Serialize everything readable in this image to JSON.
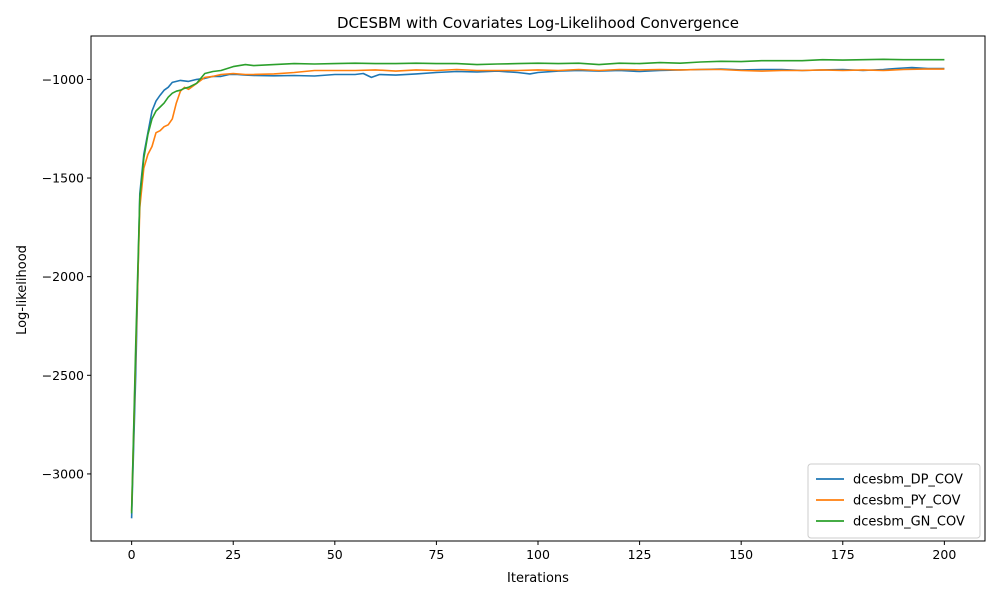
{
  "chart_data": {
    "type": "line",
    "title": "DCESBM with Covariates Log-Likelihood Convergence",
    "xlabel": "Iterations",
    "ylabel": "Log-likelihood",
    "xlim": [
      -10,
      210
    ],
    "ylim": [
      -3340,
      -780
    ],
    "xticks": [
      0,
      25,
      50,
      75,
      100,
      125,
      150,
      175,
      200
    ],
    "yticks": [
      -3000,
      -2500,
      -2000,
      -1500,
      -1000
    ],
    "xtick_labels": [
      "0",
      "25",
      "50",
      "75",
      "100",
      "125",
      "150",
      "175",
      "200"
    ],
    "ytick_labels": [
      "−3000",
      "−2500",
      "−2000",
      "−1500",
      "−1000"
    ],
    "grid": false,
    "legend_position": "lower-right",
    "series": [
      {
        "name": "dcesbm_DP_COV",
        "color": "#1f77b4",
        "points": [
          [
            0,
            -3225
          ],
          [
            1,
            -2500
          ],
          [
            2,
            -1580
          ],
          [
            3,
            -1380
          ],
          [
            4,
            -1270
          ],
          [
            5,
            -1160
          ],
          [
            6,
            -1110
          ],
          [
            7,
            -1080
          ],
          [
            8,
            -1055
          ],
          [
            9,
            -1040
          ],
          [
            10,
            -1015
          ],
          [
            12,
            -1005
          ],
          [
            14,
            -1010
          ],
          [
            16,
            -1000
          ],
          [
            18,
            -995
          ],
          [
            20,
            -985
          ],
          [
            22,
            -985
          ],
          [
            24,
            -975
          ],
          [
            26,
            -975
          ],
          [
            28,
            -978
          ],
          [
            30,
            -980
          ],
          [
            35,
            -982
          ],
          [
            40,
            -980
          ],
          [
            45,
            -983
          ],
          [
            50,
            -975
          ],
          [
            55,
            -975
          ],
          [
            57,
            -970
          ],
          [
            59,
            -990
          ],
          [
            61,
            -975
          ],
          [
            65,
            -978
          ],
          [
            70,
            -972
          ],
          [
            75,
            -965
          ],
          [
            80,
            -960
          ],
          [
            85,
            -962
          ],
          [
            90,
            -958
          ],
          [
            95,
            -965
          ],
          [
            98,
            -972
          ],
          [
            100,
            -965
          ],
          [
            105,
            -958
          ],
          [
            110,
            -955
          ],
          [
            115,
            -958
          ],
          [
            120,
            -955
          ],
          [
            125,
            -960
          ],
          [
            130,
            -955
          ],
          [
            135,
            -952
          ],
          [
            140,
            -950
          ],
          [
            145,
            -948
          ],
          [
            150,
            -952
          ],
          [
            155,
            -950
          ],
          [
            160,
            -950
          ],
          [
            165,
            -955
          ],
          [
            170,
            -952
          ],
          [
            175,
            -950
          ],
          [
            180,
            -955
          ],
          [
            185,
            -950
          ],
          [
            188,
            -945
          ],
          [
            192,
            -940
          ],
          [
            196,
            -945
          ],
          [
            200,
            -945
          ]
        ]
      },
      {
        "name": "dcesbm_PY_COV",
        "color": "#ff7f0e",
        "points": [
          [
            0,
            -3190
          ],
          [
            1,
            -2400
          ],
          [
            2,
            -1650
          ],
          [
            3,
            -1450
          ],
          [
            4,
            -1380
          ],
          [
            5,
            -1340
          ],
          [
            6,
            -1270
          ],
          [
            7,
            -1260
          ],
          [
            8,
            -1240
          ],
          [
            9,
            -1230
          ],
          [
            10,
            -1200
          ],
          [
            11,
            -1120
          ],
          [
            12,
            -1060
          ],
          [
            13,
            -1040
          ],
          [
            14,
            -1050
          ],
          [
            16,
            -1020
          ],
          [
            18,
            -990
          ],
          [
            20,
            -985
          ],
          [
            22,
            -975
          ],
          [
            25,
            -970
          ],
          [
            28,
            -975
          ],
          [
            30,
            -975
          ],
          [
            35,
            -972
          ],
          [
            40,
            -965
          ],
          [
            45,
            -955
          ],
          [
            50,
            -955
          ],
          [
            55,
            -955
          ],
          [
            60,
            -952
          ],
          [
            65,
            -958
          ],
          [
            70,
            -952
          ],
          [
            75,
            -955
          ],
          [
            80,
            -950
          ],
          [
            85,
            -955
          ],
          [
            90,
            -955
          ],
          [
            95,
            -955
          ],
          [
            100,
            -952
          ],
          [
            105,
            -955
          ],
          [
            110,
            -950
          ],
          [
            115,
            -955
          ],
          [
            120,
            -950
          ],
          [
            125,
            -952
          ],
          [
            130,
            -950
          ],
          [
            135,
            -952
          ],
          [
            140,
            -950
          ],
          [
            145,
            -950
          ],
          [
            150,
            -955
          ],
          [
            155,
            -958
          ],
          [
            160,
            -955
          ],
          [
            165,
            -955
          ],
          [
            170,
            -952
          ],
          [
            175,
            -955
          ],
          [
            180,
            -952
          ],
          [
            185,
            -955
          ],
          [
            190,
            -950
          ],
          [
            195,
            -948
          ],
          [
            200,
            -948
          ]
        ]
      },
      {
        "name": "dcesbm_GN_COV",
        "color": "#2ca02c",
        "points": [
          [
            0,
            -3200
          ],
          [
            1,
            -2350
          ],
          [
            2,
            -1600
          ],
          [
            3,
            -1400
          ],
          [
            4,
            -1280
          ],
          [
            5,
            -1200
          ],
          [
            6,
            -1160
          ],
          [
            7,
            -1140
          ],
          [
            8,
            -1120
          ],
          [
            9,
            -1090
          ],
          [
            10,
            -1070
          ],
          [
            11,
            -1060
          ],
          [
            12,
            -1055
          ],
          [
            13,
            -1045
          ],
          [
            14,
            -1040
          ],
          [
            16,
            -1020
          ],
          [
            18,
            -970
          ],
          [
            20,
            -960
          ],
          [
            22,
            -955
          ],
          [
            25,
            -935
          ],
          [
            28,
            -925
          ],
          [
            30,
            -930
          ],
          [
            35,
            -925
          ],
          [
            40,
            -920
          ],
          [
            45,
            -922
          ],
          [
            50,
            -920
          ],
          [
            55,
            -918
          ],
          [
            60,
            -920
          ],
          [
            65,
            -920
          ],
          [
            70,
            -918
          ],
          [
            75,
            -920
          ],
          [
            80,
            -920
          ],
          [
            85,
            -925
          ],
          [
            90,
            -922
          ],
          [
            95,
            -920
          ],
          [
            100,
            -918
          ],
          [
            105,
            -920
          ],
          [
            110,
            -918
          ],
          [
            115,
            -925
          ],
          [
            120,
            -918
          ],
          [
            125,
            -920
          ],
          [
            130,
            -915
          ],
          [
            135,
            -918
          ],
          [
            140,
            -912
          ],
          [
            145,
            -908
          ],
          [
            150,
            -910
          ],
          [
            155,
            -905
          ],
          [
            160,
            -905
          ],
          [
            165,
            -905
          ],
          [
            170,
            -900
          ],
          [
            175,
            -902
          ],
          [
            180,
            -900
          ],
          [
            185,
            -898
          ],
          [
            190,
            -900
          ],
          [
            195,
            -900
          ],
          [
            200,
            -900
          ]
        ]
      }
    ]
  }
}
